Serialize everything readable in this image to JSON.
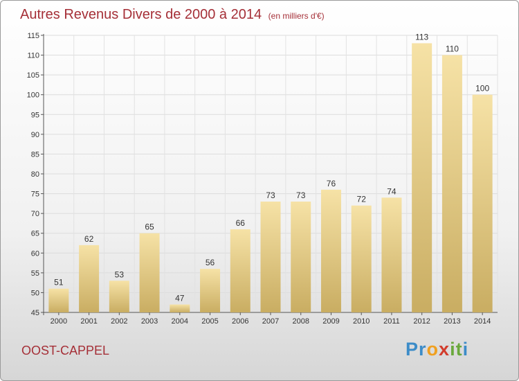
{
  "title": "Autres Revenus Divers de 2000 à 2014",
  "subtitle": "(en milliers d'€)",
  "town": "OOST-CAPPEL",
  "logo": {
    "letters": [
      "P",
      "r",
      "o",
      "x",
      "i",
      "t",
      "i"
    ],
    "colors": [
      "#3c8cc8",
      "#3c8cc8",
      "#f0a020",
      "#d23c2c",
      "#6aa83c",
      "#6aa83c",
      "#3c8cc8"
    ]
  },
  "colors": {
    "title": "#a52f37",
    "bar_light": "#f6e2a6",
    "bar_dark": "#c9ad62"
  },
  "chart_data": {
    "type": "bar",
    "categories": [
      "2000",
      "2001",
      "2002",
      "2003",
      "2004",
      "2005",
      "2006",
      "2007",
      "2008",
      "2009",
      "2010",
      "2011",
      "2012",
      "2013",
      "2014"
    ],
    "values": [
      51,
      62,
      53,
      65,
      47,
      56,
      66,
      73,
      73,
      76,
      72,
      74,
      113,
      110,
      100
    ],
    "ylim": [
      45,
      115
    ],
    "yticks": [
      45,
      50,
      55,
      60,
      65,
      70,
      75,
      80,
      85,
      90,
      95,
      100,
      105,
      110,
      115
    ],
    "grid": true
  }
}
